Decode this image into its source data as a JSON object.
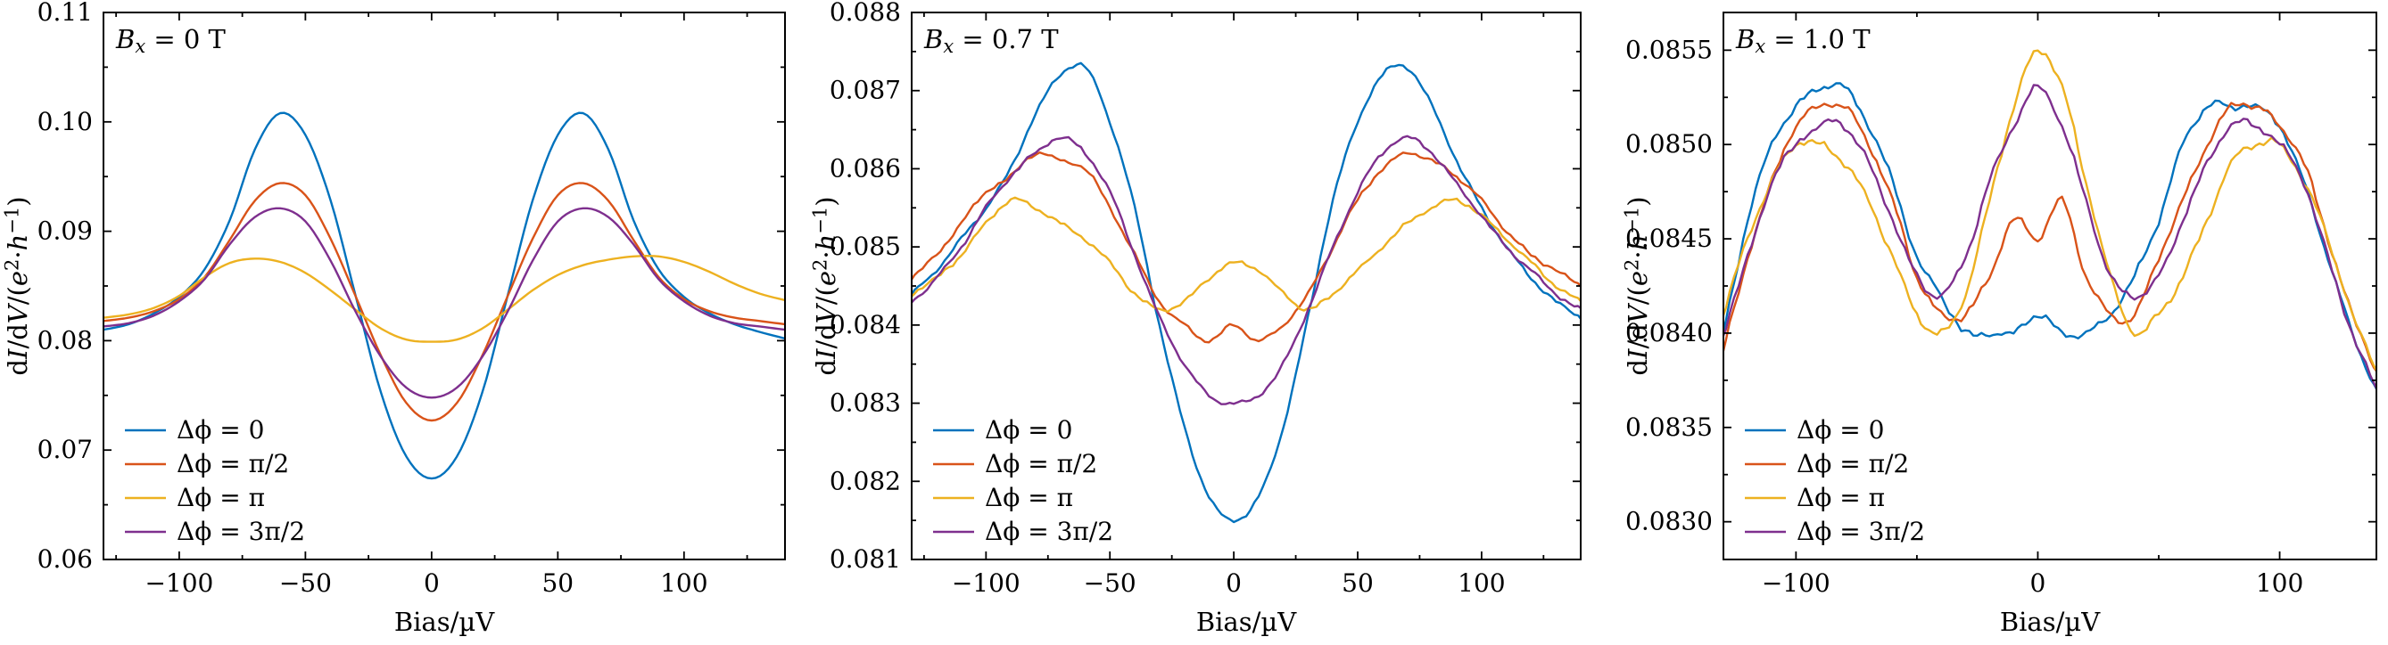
{
  "figure": {
    "background": "#ffffff",
    "text_color": "#000000",
    "axis_color": "#000000"
  },
  "chart_data": [
    {
      "type": "line",
      "title": "B_x = 0 T",
      "title_segments": [
        {
          "t": "B",
          "i": 1
        },
        {
          "t": "x",
          "i": 1,
          "sub": 1
        },
        {
          "t": " = 0 T"
        }
      ],
      "xlabel": "Bias/µV",
      "ylabel": "dI/dV/(e²·h⁻¹)",
      "ylabel_segments": [
        {
          "t": "d"
        },
        {
          "t": "I",
          "i": 1
        },
        {
          "t": "/d"
        },
        {
          "t": "V",
          "i": 1
        },
        {
          "t": "/("
        },
        {
          "t": "e",
          "i": 1
        },
        {
          "t": "2",
          "sup": 1
        },
        {
          "t": "·"
        },
        {
          "t": "h",
          "i": 1
        },
        {
          "t": "−1",
          "sup": 1
        },
        {
          "t": ")"
        }
      ],
      "xlim": [
        -130,
        140
      ],
      "ylim": [
        0.06,
        0.11
      ],
      "xticks": [
        -100,
        -50,
        0,
        50,
        100
      ],
      "xtick_labels": [
        "−100",
        "−50",
        "0",
        "50",
        "100"
      ],
      "yticks": [
        0.06,
        0.07,
        0.08,
        0.09,
        0.1,
        0.11
      ],
      "ytick_labels": [
        "0.06",
        "0.07",
        "0.08",
        "0.09",
        "0.10",
        "0.11"
      ],
      "legend_position": "lower left",
      "x": [
        -130,
        -120,
        -110,
        -100,
        -90,
        -80,
        -70,
        -60,
        -50,
        -40,
        -30,
        -20,
        -10,
        0,
        10,
        20,
        30,
        40,
        50,
        60,
        70,
        80,
        90,
        100,
        110,
        120,
        130,
        140
      ],
      "series": [
        {
          "name": "Δϕ = 0",
          "color": "#0072BD",
          "noise": 0,
          "values": [
            0.081,
            0.0815,
            0.0825,
            0.084,
            0.0865,
            0.091,
            0.0975,
            0.1008,
            0.0988,
            0.0928,
            0.084,
            0.0752,
            0.0694,
            0.0674,
            0.0694,
            0.0752,
            0.084,
            0.0928,
            0.0988,
            0.1008,
            0.0975,
            0.091,
            0.0865,
            0.084,
            0.0825,
            0.0815,
            0.0808,
            0.0802
          ]
        },
        {
          "name": "Δϕ = π/2",
          "color": "#D95319",
          "noise": 0,
          "values": [
            0.0818,
            0.0821,
            0.0827,
            0.0838,
            0.0858,
            0.0892,
            0.0928,
            0.0944,
            0.0933,
            0.0893,
            0.084,
            0.0786,
            0.0743,
            0.0727,
            0.0743,
            0.0786,
            0.084,
            0.0893,
            0.0933,
            0.0944,
            0.0928,
            0.0892,
            0.0858,
            0.0838,
            0.0827,
            0.0821,
            0.0818,
            0.0815
          ]
        },
        {
          "name": "Δϕ = π",
          "color": "#EDB120",
          "noise": 0,
          "values": [
            0.0821,
            0.0824,
            0.083,
            0.0841,
            0.0858,
            0.0871,
            0.0875,
            0.0872,
            0.0862,
            0.0846,
            0.0828,
            0.0811,
            0.0801,
            0.0799,
            0.0801,
            0.0811,
            0.0828,
            0.0846,
            0.086,
            0.0869,
            0.0874,
            0.0877,
            0.0877,
            0.0872,
            0.0863,
            0.0852,
            0.0843,
            0.0837
          ]
        },
        {
          "name": "Δϕ = 3π/2",
          "color": "#7E2F8E",
          "noise": 0,
          "values": [
            0.0813,
            0.0816,
            0.0823,
            0.0836,
            0.0856,
            0.0888,
            0.0913,
            0.0921,
            0.0909,
            0.0873,
            0.0826,
            0.0785,
            0.0757,
            0.0748,
            0.0757,
            0.0785,
            0.0826,
            0.0873,
            0.0909,
            0.0921,
            0.0913,
            0.0888,
            0.0856,
            0.0836,
            0.0823,
            0.0816,
            0.0813,
            0.081
          ]
        }
      ]
    },
    {
      "type": "line",
      "title": "B_x = 0.7 T",
      "title_segments": [
        {
          "t": "B",
          "i": 1
        },
        {
          "t": "x",
          "i": 1,
          "sub": 1
        },
        {
          "t": " = 0.7 T"
        }
      ],
      "xlabel": "Bias/µV",
      "ylabel": "dI/dV/(e²·h⁻¹)",
      "ylabel_segments": [
        {
          "t": "d"
        },
        {
          "t": "I",
          "i": 1
        },
        {
          "t": "/d"
        },
        {
          "t": "V",
          "i": 1
        },
        {
          "t": "/("
        },
        {
          "t": "e",
          "i": 1
        },
        {
          "t": "2",
          "sup": 1
        },
        {
          "t": "·"
        },
        {
          "t": "h",
          "i": 1
        },
        {
          "t": "−1",
          "sup": 1
        },
        {
          "t": ")"
        }
      ],
      "xlim": [
        -130,
        140
      ],
      "ylim": [
        0.081,
        0.088
      ],
      "xticks": [
        -100,
        -50,
        0,
        50,
        100
      ],
      "xtick_labels": [
        "−100",
        "−50",
        "0",
        "50",
        "100"
      ],
      "yticks": [
        0.081,
        0.082,
        0.083,
        0.084,
        0.085,
        0.086,
        0.087,
        0.088
      ],
      "ytick_labels": [
        "0.081",
        "0.082",
        "0.083",
        "0.084",
        "0.085",
        "0.086",
        "0.087",
        "0.088"
      ],
      "legend_position": "lower left",
      "x": [
        -130,
        -120,
        -110,
        -100,
        -90,
        -80,
        -70,
        -60,
        -50,
        -40,
        -30,
        -20,
        -10,
        0,
        10,
        20,
        30,
        40,
        50,
        60,
        70,
        80,
        90,
        100,
        110,
        120,
        130,
        140
      ],
      "series": [
        {
          "name": "Δϕ = 0",
          "color": "#0072BD",
          "noise": 2.5e-05,
          "values": [
            0.0844,
            0.0847,
            0.0851,
            0.0855,
            0.086,
            0.0867,
            0.0872,
            0.0873,
            0.0866,
            0.0855,
            0.084,
            0.0827,
            0.0818,
            0.0815,
            0.0818,
            0.0827,
            0.0841,
            0.0856,
            0.0866,
            0.0872,
            0.0873,
            0.0868,
            0.0861,
            0.0855,
            0.085,
            0.0846,
            0.0843,
            0.0841
          ]
        },
        {
          "name": "Δϕ = π/2",
          "color": "#D95319",
          "noise": 2.5e-05,
          "values": [
            0.0846,
            0.0849,
            0.0853,
            0.0857,
            0.0859,
            0.0862,
            0.0861,
            0.086,
            0.0855,
            0.0849,
            0.0843,
            0.084,
            0.0838,
            0.084,
            0.0838,
            0.084,
            0.0844,
            0.085,
            0.0856,
            0.086,
            0.0862,
            0.0861,
            0.0859,
            0.0856,
            0.0852,
            0.0849,
            0.0847,
            0.0845
          ]
        },
        {
          "name": "Δϕ = π",
          "color": "#EDB120",
          "noise": 2.5e-05,
          "values": [
            0.0844,
            0.0846,
            0.0849,
            0.0853,
            0.0856,
            0.0855,
            0.0853,
            0.0851,
            0.0848,
            0.0844,
            0.0842,
            0.0843,
            0.0846,
            0.0848,
            0.0847,
            0.0844,
            0.0842,
            0.0844,
            0.0847,
            0.085,
            0.0853,
            0.0855,
            0.0856,
            0.0854,
            0.0851,
            0.0848,
            0.0845,
            0.0843
          ]
        },
        {
          "name": "Δϕ = 3π/2",
          "color": "#7E2F8E",
          "noise": 2.5e-05,
          "values": [
            0.0843,
            0.0846,
            0.085,
            0.0855,
            0.0859,
            0.0862,
            0.0864,
            0.0862,
            0.0857,
            0.0849,
            0.0841,
            0.0835,
            0.0831,
            0.083,
            0.0831,
            0.0835,
            0.0842,
            0.085,
            0.0857,
            0.0862,
            0.0864,
            0.0862,
            0.0858,
            0.0854,
            0.085,
            0.0847,
            0.0844,
            0.0842
          ]
        }
      ]
    },
    {
      "type": "line",
      "title": "B_x = 1.0 T",
      "title_segments": [
        {
          "t": "B",
          "i": 1
        },
        {
          "t": "x",
          "i": 1,
          "sub": 1
        },
        {
          "t": " = 1.0 T"
        }
      ],
      "xlabel": "Bias/µV",
      "ylabel": "dI/dV/(e²·h⁻¹)",
      "ylabel_segments": [
        {
          "t": "d"
        },
        {
          "t": "I",
          "i": 1
        },
        {
          "t": "/d"
        },
        {
          "t": "V",
          "i": 1
        },
        {
          "t": "/("
        },
        {
          "t": "e",
          "i": 1
        },
        {
          "t": "2",
          "sup": 1
        },
        {
          "t": "·"
        },
        {
          "t": "h",
          "i": 1
        },
        {
          "t": "−1",
          "sup": 1
        },
        {
          "t": ")"
        }
      ],
      "xlim": [
        -130,
        140
      ],
      "ylim": [
        0.0828,
        0.0857
      ],
      "xticks": [
        -100,
        0,
        100
      ],
      "xtick_labels": [
        "−100",
        "0",
        "100"
      ],
      "yticks": [
        0.083,
        0.0835,
        0.084,
        0.0845,
        0.085,
        0.0855
      ],
      "ytick_labels": [
        "0.0830",
        "0.0835",
        "0.0840",
        "0.0845",
        "0.0850",
        "0.0855"
      ],
      "legend_position": "lower left",
      "x": [
        -130,
        -120,
        -110,
        -100,
        -90,
        -80,
        -70,
        -60,
        -50,
        -40,
        -30,
        -20,
        -10,
        0,
        10,
        20,
        30,
        40,
        50,
        60,
        70,
        80,
        90,
        100,
        110,
        120,
        130,
        140
      ],
      "series": [
        {
          "name": "Δϕ = 0",
          "color": "#0072BD",
          "noise": 1.8e-05,
          "values": [
            0.084,
            0.0846,
            0.085,
            0.0852,
            0.0853,
            0.0853,
            0.0851,
            0.0848,
            0.0844,
            0.0842,
            0.084,
            0.084,
            0.084,
            0.0841,
            0.084,
            0.084,
            0.0841,
            0.0843,
            0.0846,
            0.085,
            0.0852,
            0.0852,
            0.0852,
            0.0851,
            0.0848,
            0.0844,
            0.084,
            0.0837
          ]
        },
        {
          "name": "Δϕ = π/2",
          "color": "#D95319",
          "noise": 1.8e-05,
          "values": [
            0.0839,
            0.0844,
            0.0848,
            0.0851,
            0.0852,
            0.0852,
            0.085,
            0.0847,
            0.0843,
            0.0841,
            0.0841,
            0.0843,
            0.0846,
            0.0845,
            0.0847,
            0.0843,
            0.0841,
            0.0841,
            0.0844,
            0.0847,
            0.085,
            0.0852,
            0.0852,
            0.0851,
            0.0849,
            0.0845,
            0.0841,
            0.0838
          ]
        },
        {
          "name": "Δϕ = π",
          "color": "#EDB120",
          "noise": 1.8e-05,
          "values": [
            0.0841,
            0.0845,
            0.0848,
            0.085,
            0.085,
            0.0849,
            0.0847,
            0.0844,
            0.0841,
            0.084,
            0.0842,
            0.0847,
            0.0852,
            0.0855,
            0.0853,
            0.0848,
            0.0843,
            0.084,
            0.0841,
            0.0843,
            0.0846,
            0.0849,
            0.085,
            0.085,
            0.0848,
            0.0845,
            0.0841,
            0.0838
          ]
        },
        {
          "name": "Δϕ = 3π/2",
          "color": "#7E2F8E",
          "noise": 1.8e-05,
          "values": [
            0.084,
            0.0844,
            0.0848,
            0.085,
            0.0851,
            0.0851,
            0.0849,
            0.0846,
            0.0843,
            0.0842,
            0.0844,
            0.0848,
            0.0851,
            0.0853,
            0.0851,
            0.0847,
            0.0843,
            0.0842,
            0.0843,
            0.0846,
            0.0849,
            0.0851,
            0.0851,
            0.085,
            0.0848,
            0.0844,
            0.084,
            0.0837
          ]
        }
      ]
    }
  ]
}
